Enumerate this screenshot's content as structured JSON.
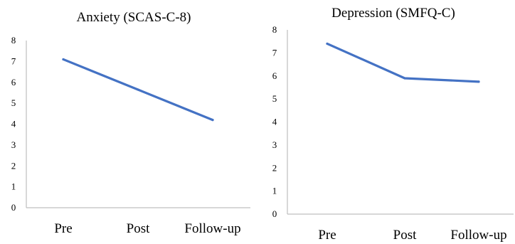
{
  "colors": {
    "series": "#4472C4",
    "axis": "#bfbfbf"
  },
  "chart_data": [
    {
      "type": "line",
      "title": "Anxiety (SCAS-C-8)",
      "categories": [
        "Pre",
        "Post",
        "Follow-up"
      ],
      "series": [
        {
          "values": [
            7.1,
            5.65,
            4.2
          ]
        }
      ],
      "ylim": [
        0,
        8
      ],
      "yticks": [
        "0",
        "1",
        "2",
        "3",
        "4",
        "5",
        "6",
        "7",
        "8"
      ],
      "xlabel": "",
      "ylabel": "",
      "grid": false,
      "legend": "none"
    },
    {
      "type": "line",
      "title": "Depression (SMFQ-C)",
      "categories": [
        "Pre",
        "Post",
        "Follow-up"
      ],
      "series": [
        {
          "values": [
            7.4,
            5.9,
            5.75
          ]
        }
      ],
      "ylim": [
        0,
        8
      ],
      "yticks": [
        "0",
        "1",
        "2",
        "3",
        "4",
        "5",
        "6",
        "7",
        "8"
      ],
      "xlabel": "",
      "ylabel": "",
      "grid": false,
      "legend": "none"
    }
  ]
}
